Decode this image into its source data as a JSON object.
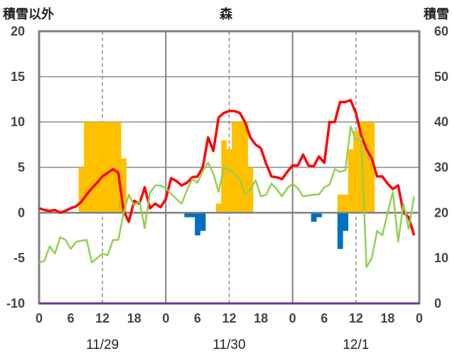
{
  "chart_data": {
    "type": "combo",
    "title": "森",
    "y_left_label": "積雪以外",
    "y_right_label": "積雪",
    "y_left": {
      "min": -10,
      "max": 20,
      "ticks": [
        "20",
        "15",
        "10",
        "5",
        "0",
        "-5",
        "-10"
      ]
    },
    "y_right": {
      "min": 0,
      "max": 60,
      "ticks": [
        "60",
        "50",
        "40",
        "30",
        "20",
        "10",
        "0"
      ]
    },
    "x_range": [
      0,
      72
    ],
    "x_hour_ticks": [
      {
        "x": 0,
        "label": "0"
      },
      {
        "x": 6,
        "label": "6"
      },
      {
        "x": 12,
        "label": "12"
      },
      {
        "x": 18,
        "label": "18"
      },
      {
        "x": 24,
        "label": "0"
      },
      {
        "x": 30,
        "label": "6"
      },
      {
        "x": 36,
        "label": "12"
      },
      {
        "x": 42,
        "label": "18"
      },
      {
        "x": 48,
        "label": "0"
      },
      {
        "x": 54,
        "label": "6"
      },
      {
        "x": 60,
        "label": "12"
      },
      {
        "x": 66,
        "label": "18"
      },
      {
        "x": 72,
        "label": "0"
      }
    ],
    "date_labels": [
      {
        "x": 12,
        "label": "11/29"
      },
      {
        "x": 36,
        "label": "11/30"
      },
      {
        "x": 60,
        "label": "12/1"
      }
    ],
    "series": [
      {
        "kind": "bar",
        "axis": "left",
        "color": "#ffc000",
        "x": [
          8,
          9,
          10,
          11,
          12,
          13,
          14,
          15,
          16,
          34,
          35,
          36,
          37,
          38,
          39,
          40,
          57,
          58,
          59,
          60,
          61,
          62,
          63
        ],
        "values": [
          5,
          10,
          10,
          10,
          10,
          10,
          10,
          10,
          6,
          1,
          8,
          7,
          10,
          10,
          10,
          5,
          2,
          2,
          7,
          9,
          10,
          10,
          10
        ]
      },
      {
        "kind": "bar",
        "axis": "left",
        "color": "#0070c0",
        "x": [
          28,
          29,
          30,
          31,
          52,
          53,
          57,
          58
        ],
        "values": [
          -0.5,
          -0.5,
          -2.5,
          -2,
          -1,
          -0.5,
          -4,
          -2
        ]
      },
      {
        "kind": "line",
        "axis": "left",
        "color": "#ff0000",
        "x": [
          0,
          1,
          2,
          3,
          4,
          5,
          6,
          7,
          8,
          9,
          10,
          11,
          12,
          13,
          14,
          15,
          16,
          17,
          18,
          19,
          20,
          21,
          22,
          23,
          24,
          25,
          26,
          27,
          28,
          29,
          30,
          31,
          32,
          33,
          34,
          35,
          36,
          37,
          38,
          39,
          40,
          41,
          42,
          43,
          44,
          45,
          46,
          47,
          48,
          49,
          50,
          51,
          52,
          53,
          54,
          55,
          56,
          57,
          58,
          59,
          60,
          61,
          62,
          63,
          64,
          65,
          66,
          67,
          68,
          69,
          70,
          71
        ],
        "values": [
          0.5,
          0.3,
          0.2,
          0.3,
          0,
          0.2,
          0.5,
          0.7,
          1.2,
          2,
          2.7,
          3.3,
          4,
          4.4,
          4.8,
          4.4,
          0.2,
          -1,
          1.3,
          1,
          2.8,
          0.5,
          1,
          0.6,
          1.5,
          3.8,
          3.5,
          3,
          3.3,
          3.9,
          4,
          5,
          8.3,
          6.8,
          10.5,
          11,
          11.2,
          11.2,
          11,
          10,
          8.3,
          7.5,
          7.1,
          5.4,
          4,
          3.9,
          3.7,
          4.5,
          5.2,
          5.2,
          6.4,
          5.2,
          5.1,
          6.2,
          5.5,
          10,
          10,
          12.2,
          12.2,
          12.4,
          11,
          8.5,
          7,
          6,
          4,
          4,
          3.2,
          2.6,
          3,
          0,
          -0.5,
          -2.5
        ]
      },
      {
        "kind": "line",
        "axis": "left",
        "color": "#92d050",
        "x": [
          0,
          1,
          2,
          3,
          4,
          5,
          6,
          7,
          8,
          9,
          10,
          11,
          12,
          13,
          14,
          15,
          16,
          17,
          18,
          19,
          20,
          21,
          22,
          23,
          24,
          25,
          26,
          27,
          28,
          29,
          30,
          31,
          32,
          33,
          34,
          35,
          36,
          37,
          38,
          39,
          40,
          41,
          42,
          43,
          44,
          45,
          46,
          47,
          48,
          49,
          50,
          51,
          52,
          53,
          54,
          55,
          56,
          57,
          58,
          59,
          60,
          61,
          62,
          63,
          64,
          65,
          66,
          67,
          68,
          69,
          70,
          71
        ],
        "values": [
          -5.5,
          -5.3,
          -3.7,
          -4.5,
          -2.7,
          -3,
          -4,
          -3.2,
          -3.1,
          -3,
          -5.5,
          -5,
          -4.5,
          -4.7,
          -3,
          -3,
          0,
          2,
          0.8,
          1.3,
          -1.7,
          2.2,
          3,
          3,
          2.7,
          2.1,
          1.5,
          1,
          2.5,
          3.7,
          3.3,
          4.6,
          5.5,
          4.3,
          2.3,
          5,
          4.7,
          4.3,
          3.6,
          2,
          2.5,
          3.6,
          1.8,
          2,
          3.2,
          2.6,
          1.8,
          2.7,
          3.2,
          2.7,
          1.8,
          1.9,
          2,
          2,
          2.8,
          3.1,
          4.8,
          4.5,
          4.7,
          9.5,
          8,
          8.2,
          -6,
          -5,
          -2,
          -2.5,
          0,
          2.3,
          -3.2,
          1,
          -1.8,
          1.8
        ]
      },
      {
        "kind": "line",
        "axis": "right",
        "color": "#7030a0",
        "x": [
          0,
          72
        ],
        "values": [
          0,
          0
        ]
      }
    ],
    "grid": {
      "horizontal": [
        15,
        10,
        5
      ],
      "dashed_vertical_hours": [
        12,
        36,
        60
      ],
      "solid_vertical_hours": [
        24,
        48
      ]
    }
  }
}
